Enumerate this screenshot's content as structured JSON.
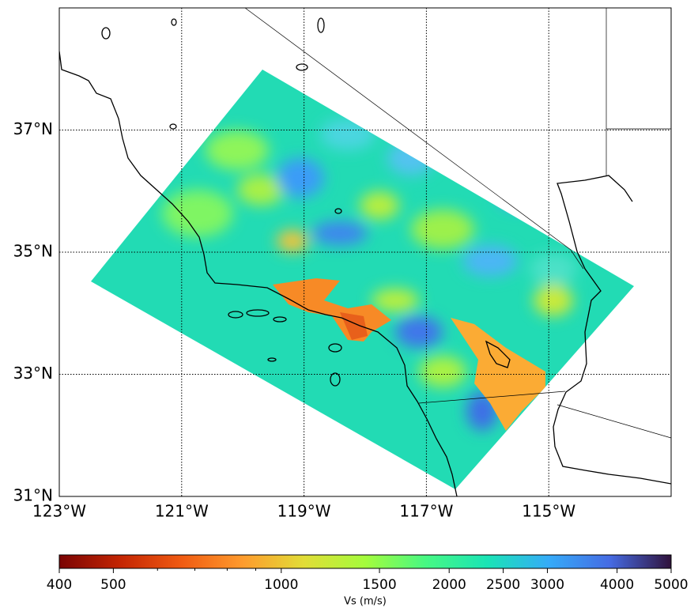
{
  "map": {
    "xlim": [
      -123,
      -113
    ],
    "ylim": [
      31,
      39
    ],
    "grid": true,
    "lon_ticks": [
      {
        "value": -123,
        "label": "123°W"
      },
      {
        "value": -121,
        "label": "121°W"
      },
      {
        "value": -119,
        "label": "119°W"
      },
      {
        "value": -117,
        "label": "117°W"
      },
      {
        "value": -115,
        "label": "115°W"
      }
    ],
    "lat_ticks": [
      {
        "value": 31,
        "label": "31°N"
      },
      {
        "value": 33,
        "label": "33°N"
      },
      {
        "value": 35,
        "label": "35°N"
      },
      {
        "value": 37,
        "label": "37°N"
      }
    ]
  },
  "colorbar": {
    "label": "Vs (m/s)",
    "scale": "log",
    "lim": [
      400,
      5000
    ],
    "ticks": [
      400,
      500,
      1000,
      1500,
      2000,
      2500,
      3000,
      4000,
      5000
    ],
    "minor_ticks": [
      600,
      700,
      800,
      900
    ]
  }
}
